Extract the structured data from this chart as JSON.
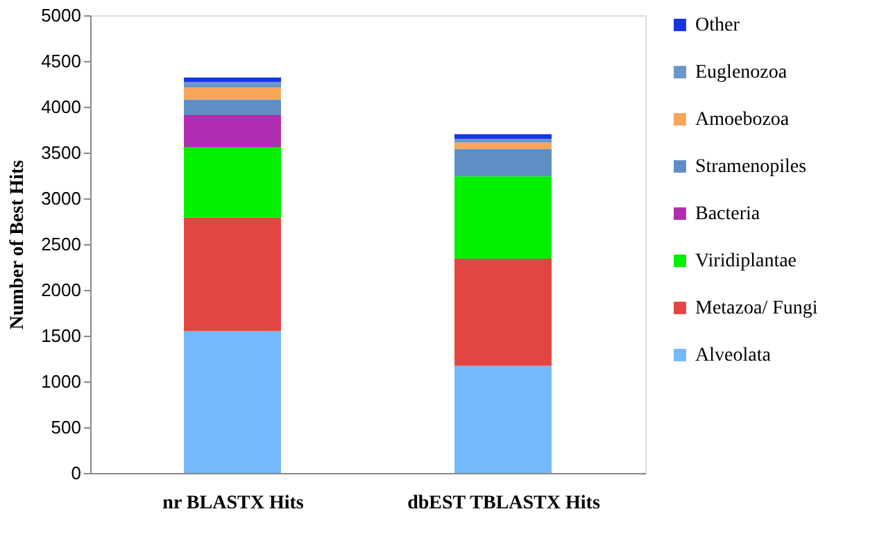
{
  "chart_data": {
    "type": "bar",
    "stacked": true,
    "ylabel": "Number of Best Hits",
    "categories": [
      "nr BLASTX  Hits",
      "dbEST TBLASTX Hits"
    ],
    "ylim": [
      0,
      5000
    ],
    "yticks": [
      0,
      500,
      1000,
      1500,
      2000,
      2500,
      3000,
      3500,
      4000,
      4500,
      5000
    ],
    "grid": false,
    "legend": "right",
    "series": [
      {
        "name": "Alveolata",
        "color": "#74b9fc",
        "values": [
          1550,
          1170
        ]
      },
      {
        "name": "Metazoa/ Fungi",
        "color": "#e34642",
        "values": [
          1240,
          1170
        ]
      },
      {
        "name": "Viridiplantae",
        "color": "#00f000",
        "values": [
          770,
          900
        ]
      },
      {
        "name": "Bacteria",
        "color": "#b02cb0",
        "values": [
          350,
          0
        ]
      },
      {
        "name": "Stramenopiles",
        "color": "#5e8ec4",
        "values": [
          170,
          300
        ]
      },
      {
        "name": "Amoebozoa",
        "color": "#f8a65a",
        "values": [
          130,
          70
        ]
      },
      {
        "name": "Euglenozoa",
        "color": "#6b96c9",
        "values": [
          60,
          40
        ]
      },
      {
        "name": "Other",
        "color": "#1434e8",
        "values": [
          50,
          50
        ]
      }
    ]
  }
}
